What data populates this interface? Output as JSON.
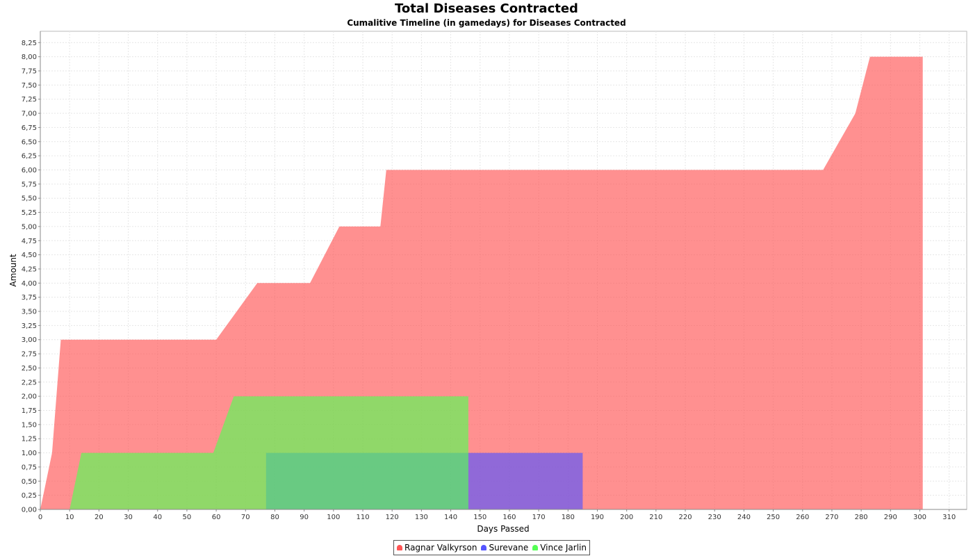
{
  "chart_data": {
    "type": "area",
    "title": "Total Diseases Contracted",
    "subtitle": "Cumalitive Timeline (in gamedays) for Diseases Contracted",
    "xlabel": "Days Passed",
    "ylabel": "Amount",
    "xlim": [
      0,
      316
    ],
    "ylim": [
      0,
      8.45
    ],
    "x_ticks": [
      0,
      10,
      20,
      30,
      40,
      50,
      60,
      70,
      80,
      90,
      100,
      110,
      120,
      130,
      140,
      150,
      160,
      170,
      180,
      190,
      200,
      210,
      220,
      230,
      240,
      250,
      260,
      270,
      280,
      290,
      300,
      310
    ],
    "y_ticks": [
      "0,00",
      "0,25",
      "0,50",
      "0,75",
      "1,00",
      "1,25",
      "1,50",
      "1,75",
      "2,00",
      "2,25",
      "2,50",
      "2,75",
      "3,00",
      "3,25",
      "3,50",
      "3,75",
      "4,00",
      "4,25",
      "4,50",
      "4,75",
      "5,00",
      "5,25",
      "5,50",
      "5,75",
      "6,00",
      "6,25",
      "6,50",
      "6,75",
      "7,00",
      "7,25",
      "7,50",
      "7,75",
      "8,00",
      "8,25"
    ],
    "grid": true,
    "legend_position": "bottom",
    "series": [
      {
        "name": "Ragnar Valkyrson",
        "color": "#ff5555",
        "legend_color": "#ff5555",
        "points": [
          [
            0,
            0
          ],
          [
            4,
            1
          ],
          [
            7,
            3
          ],
          [
            60,
            3
          ],
          [
            74,
            4
          ],
          [
            92,
            4
          ],
          [
            102,
            5
          ],
          [
            116,
            5
          ],
          [
            118,
            6
          ],
          [
            267,
            6
          ],
          [
            278,
            7
          ],
          [
            283,
            8
          ],
          [
            301,
            8
          ],
          [
            301,
            0
          ]
        ]
      },
      {
        "name": "Surevane",
        "color": "#5555ff",
        "legend_color": "#5555ff",
        "points": [
          [
            77,
            0
          ],
          [
            77,
            1
          ],
          [
            185,
            1
          ],
          [
            185,
            0
          ]
        ]
      },
      {
        "name": "Vince Jarlin",
        "color": "#55ff55",
        "legend_color": "#55ff55",
        "points": [
          [
            10,
            0
          ],
          [
            14,
            1
          ],
          [
            59,
            1
          ],
          [
            66,
            2
          ],
          [
            146,
            2
          ],
          [
            146,
            0
          ]
        ]
      }
    ]
  }
}
